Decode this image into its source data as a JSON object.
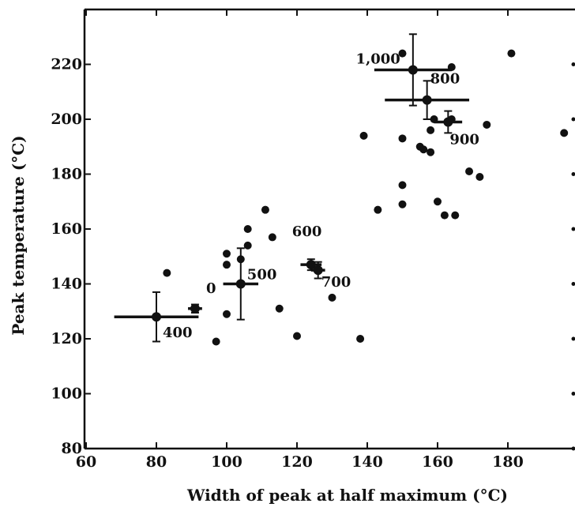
{
  "chart_data": {
    "type": "scatter",
    "title": "",
    "xlabel": "Width of peak at half maximum (°C)",
    "ylabel": "Peak temperature (°C)",
    "xlim": [
      60,
      200
    ],
    "ylim": [
      80,
      240
    ],
    "x_ticks": [
      60,
      80,
      100,
      120,
      140,
      160,
      180
    ],
    "x_tick_labels": [
      "60",
      "80",
      "100",
      "120",
      "140",
      "160",
      "180"
    ],
    "y_ticks": [
      80,
      100,
      120,
      140,
      160,
      180,
      200,
      220
    ],
    "y_tick_labels": [
      "80",
      "100",
      "120",
      "140",
      "160",
      "180",
      "200",
      "220"
    ],
    "grid": false,
    "series": [
      {
        "points": [
          [
            83,
            144
          ],
          [
            97,
            119
          ],
          [
            100,
            151
          ],
          [
            100,
            147
          ],
          [
            100,
            129
          ],
          [
            104,
            149
          ],
          [
            106,
            160
          ],
          [
            106,
            154
          ],
          [
            111,
            167
          ],
          [
            113,
            157
          ],
          [
            115,
            131
          ],
          [
            120,
            121
          ],
          [
            130,
            135
          ],
          [
            138,
            120
          ],
          [
            139,
            194
          ],
          [
            143,
            167
          ],
          [
            150,
            169
          ],
          [
            150,
            176
          ],
          [
            150,
            193
          ],
          [
            150,
            224
          ],
          [
            155,
            190
          ],
          [
            156,
            189
          ],
          [
            158,
            188
          ],
          [
            158,
            196
          ],
          [
            159,
            200
          ],
          [
            160,
            170
          ],
          [
            162,
            165
          ],
          [
            164,
            200
          ],
          [
            164,
            219
          ],
          [
            165,
            165
          ],
          [
            169,
            181
          ],
          [
            172,
            179
          ],
          [
            174,
            198
          ],
          [
            181,
            224
          ],
          [
            196,
            195
          ]
        ]
      },
      {
        "markers": [
          {
            "label": "400",
            "x": 80,
            "y": 128,
            "x_err": 12,
            "y_err": 9
          },
          {
            "label": "0",
            "x": 91,
            "y": 131,
            "x_err": 2,
            "y_err": 1.5
          },
          {
            "label": "500",
            "x": 104,
            "y": 140,
            "x_err": 5,
            "y_err": 13
          },
          {
            "label": "600",
            "x": 124,
            "y": 147,
            "x_err": 3,
            "y_err": 2
          },
          {
            "label": "700",
            "x": 126,
            "y": 145,
            "x_err": 2,
            "y_err": 3
          },
          {
            "label": "1,000",
            "x": 153,
            "y": 218,
            "x_err": 11,
            "y_err": 13
          },
          {
            "label": "800",
            "x": 157,
            "y": 207,
            "x_err": 12,
            "y_err": 7
          },
          {
            "label": "900",
            "x": 163,
            "y": 199,
            "x_err": 4,
            "y_err": 4
          }
        ]
      }
    ]
  }
}
